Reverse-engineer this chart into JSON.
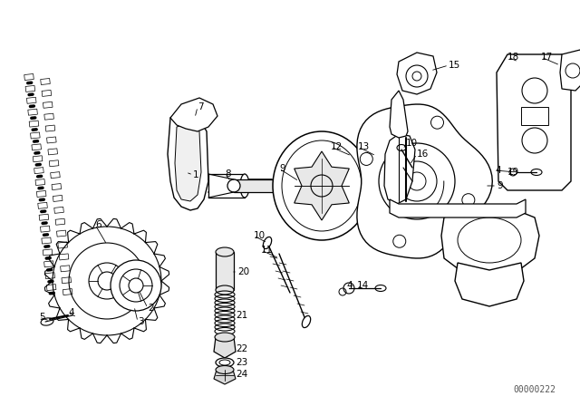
{
  "bg_color": "#ffffff",
  "line_color": "#000000",
  "fig_width": 6.4,
  "fig_height": 4.48,
  "dpi": 100,
  "watermark": "00000222",
  "watermark_fontsize": 7
}
